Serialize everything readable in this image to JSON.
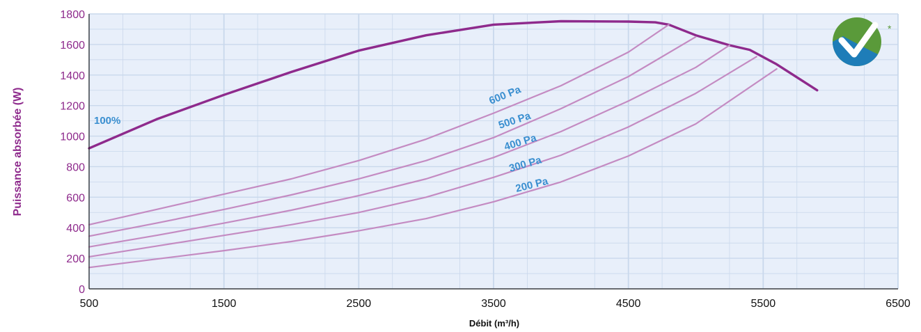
{
  "chart_data": {
    "type": "line",
    "xlabel": "Débit (m³/h)",
    "ylabel": "Puissance absorbée (W)",
    "xlim": [
      500,
      6500
    ],
    "ylim": [
      0,
      1800
    ],
    "x_ticks": [
      "500",
      "1500",
      "2500",
      "3500",
      "4500",
      "5500",
      "6500"
    ],
    "y_ticks": [
      "0",
      "200",
      "400",
      "600",
      "800",
      "1000",
      "1200",
      "1400",
      "1600",
      "1800"
    ],
    "grid": true,
    "colors": {
      "main_curve": "#8e2a8c",
      "pressure_curves": "#c48bc2",
      "labels": "#3a8fd0",
      "axis_text": "#8e2a8c",
      "plot_background": "#e8effa",
      "grid": "#c9d8ec"
    },
    "series": [
      {
        "name": "100%",
        "points": [
          [
            500,
            920
          ],
          [
            1000,
            1110
          ],
          [
            1500,
            1270
          ],
          [
            2000,
            1420
          ],
          [
            2500,
            1560
          ],
          [
            3000,
            1660
          ],
          [
            3500,
            1730
          ],
          [
            4000,
            1752
          ],
          [
            4500,
            1750
          ],
          [
            4700,
            1745
          ],
          [
            4800,
            1730
          ],
          [
            5000,
            1660
          ],
          [
            5250,
            1595
          ],
          [
            5400,
            1565
          ],
          [
            5600,
            1470
          ],
          [
            5900,
            1300
          ]
        ]
      },
      {
        "name": "600 Pa",
        "points": [
          [
            500,
            420
          ],
          [
            1000,
            520
          ],
          [
            1500,
            620
          ],
          [
            2000,
            720
          ],
          [
            2500,
            840
          ],
          [
            3000,
            980
          ],
          [
            3500,
            1150
          ],
          [
            4000,
            1330
          ],
          [
            4500,
            1550
          ],
          [
            4800,
            1730
          ]
        ]
      },
      {
        "name": "500 Pa",
        "points": [
          [
            500,
            345
          ],
          [
            1000,
            430
          ],
          [
            1500,
            520
          ],
          [
            2000,
            615
          ],
          [
            2500,
            720
          ],
          [
            3000,
            840
          ],
          [
            3500,
            990
          ],
          [
            4000,
            1180
          ],
          [
            4500,
            1390
          ],
          [
            5000,
            1650
          ]
        ]
      },
      {
        "name": "400 Pa",
        "points": [
          [
            500,
            275
          ],
          [
            1000,
            350
          ],
          [
            1500,
            430
          ],
          [
            2000,
            515
          ],
          [
            2500,
            610
          ],
          [
            3000,
            720
          ],
          [
            3500,
            860
          ],
          [
            4000,
            1030
          ],
          [
            4500,
            1230
          ],
          [
            5000,
            1450
          ],
          [
            5250,
            1595
          ]
        ]
      },
      {
        "name": "300 Pa",
        "points": [
          [
            500,
            210
          ],
          [
            1000,
            280
          ],
          [
            1500,
            350
          ],
          [
            2000,
            420
          ],
          [
            2500,
            500
          ],
          [
            3000,
            600
          ],
          [
            3500,
            730
          ],
          [
            4000,
            875
          ],
          [
            4500,
            1060
          ],
          [
            5000,
            1280
          ],
          [
            5450,
            1520
          ]
        ]
      },
      {
        "name": "200 Pa",
        "points": [
          [
            500,
            140
          ],
          [
            1000,
            195
          ],
          [
            1500,
            250
          ],
          [
            2000,
            310
          ],
          [
            2500,
            380
          ],
          [
            3000,
            460
          ],
          [
            3500,
            570
          ],
          [
            4000,
            700
          ],
          [
            4500,
            870
          ],
          [
            5000,
            1080
          ],
          [
            5600,
            1440
          ]
        ]
      }
    ]
  },
  "badge": {
    "asterisk": "*",
    "icon": "checkmark-icon"
  }
}
